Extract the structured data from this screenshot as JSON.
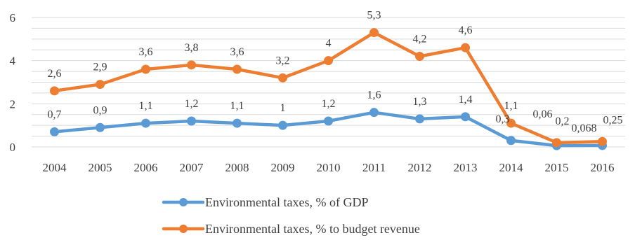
{
  "chart_data": {
    "type": "line",
    "categories": [
      "2004",
      "2005",
      "2006",
      "2007",
      "2008",
      "2009",
      "2010",
      "2011",
      "2012",
      "2013",
      "2014",
      "2015",
      "2016"
    ],
    "ylim": [
      0,
      6
    ],
    "yticks": [
      "0",
      "2",
      "4",
      "6"
    ],
    "grid": true,
    "legend_position": "bottom",
    "series": [
      {
        "name": "Environmental taxes, % of GDP",
        "color": "#5b9bd5",
        "values": [
          0.7,
          0.9,
          1.1,
          1.2,
          1.1,
          1.0,
          1.2,
          1.6,
          1.3,
          1.4,
          0.3,
          0.06,
          0.068
        ],
        "labels": [
          "0,7",
          "0,9",
          "1,1",
          "1,2",
          "1,1",
          "1",
          "1,2",
          "1,6",
          "1,3",
          "1,4",
          "0,3",
          "0,06",
          "0,068"
        ]
      },
      {
        "name": "Environmental taxes, % to budget revenue",
        "color": "#ed7d31",
        "values": [
          2.6,
          2.9,
          3.6,
          3.8,
          3.6,
          3.2,
          4.0,
          5.3,
          4.2,
          4.6,
          1.1,
          0.2,
          0.25
        ],
        "labels": [
          "2,6",
          "2,9",
          "3,6",
          "3,8",
          "3,6",
          "3,2",
          "4",
          "5,3",
          "4,2",
          "4,6",
          "1,1",
          "0,2",
          "0,25"
        ]
      }
    ]
  }
}
